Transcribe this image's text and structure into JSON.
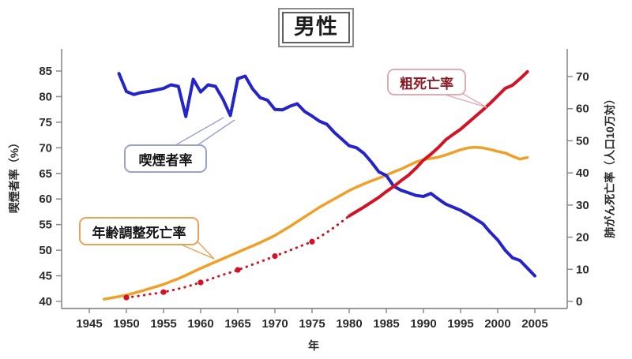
{
  "title": "男性",
  "callouts": {
    "smoking": "喫煙者率",
    "crude": "粗死亡率",
    "age_adjusted": "年齢調整死亡率"
  },
  "colors": {
    "smoking_line": "#2424c8",
    "crude_line": "#d41226",
    "age_adjusted_line": "#f0a028",
    "axis": "#8a8a8a",
    "tick_text": "#2b2b2b"
  },
  "chart_data": {
    "type": "line",
    "title": "男性",
    "xlabel": "年",
    "ylabel_left": "喫煙者率（%）",
    "ylabel_right": "肺がん死亡率（人口10万対）",
    "x_ticks": [
      1945,
      1950,
      1955,
      1960,
      1965,
      1970,
      1975,
      1980,
      1985,
      1990,
      1995,
      2000,
      2005
    ],
    "left_ticks": [
      40,
      45,
      50,
      55,
      60,
      65,
      70,
      75,
      80,
      85
    ],
    "right_ticks": [
      0,
      10,
      20,
      30,
      40,
      50,
      60,
      70
    ],
    "x_range_years": [
      1941.3,
      2009.4
    ],
    "ylim_left": [
      38.6,
      89.3
    ],
    "ylim_right": [
      -2.2,
      78.6
    ],
    "grid": false,
    "legend_position": "callout-bubbles-on-chart",
    "series": [
      {
        "name": "喫煙者率",
        "axis": "left",
        "unit": "%",
        "color": "#2424c8",
        "style": "solid",
        "width": 4,
        "points": [
          [
            1949,
            84.5
          ],
          [
            1950,
            81.0
          ],
          [
            1951,
            80.4
          ],
          [
            1952,
            80.8
          ],
          [
            1953,
            81.0
          ],
          [
            1954,
            81.3
          ],
          [
            1955,
            81.6
          ],
          [
            1956,
            82.3
          ],
          [
            1957,
            82.0
          ],
          [
            1958,
            76.1
          ],
          [
            1959,
            83.4
          ],
          [
            1960,
            80.9
          ],
          [
            1961,
            82.3
          ],
          [
            1962,
            82.0
          ],
          [
            1963,
            79.5
          ],
          [
            1964,
            76.3
          ],
          [
            1965,
            83.5
          ],
          [
            1966,
            84.0
          ],
          [
            1967,
            81.5
          ],
          [
            1968,
            79.8
          ],
          [
            1969,
            79.3
          ],
          [
            1970,
            77.5
          ],
          [
            1971,
            77.4
          ],
          [
            1972,
            78.1
          ],
          [
            1973,
            78.6
          ],
          [
            1974,
            77.1
          ],
          [
            1975,
            76.2
          ],
          [
            1976,
            75.2
          ],
          [
            1977,
            74.6
          ],
          [
            1978,
            73.0
          ],
          [
            1979,
            71.7
          ],
          [
            1980,
            70.4
          ],
          [
            1981,
            70.0
          ],
          [
            1982,
            68.9
          ],
          [
            1983,
            67.2
          ],
          [
            1984,
            65.3
          ],
          [
            1985,
            64.6
          ],
          [
            1986,
            62.5
          ],
          [
            1987,
            61.7
          ],
          [
            1988,
            61.2
          ],
          [
            1989,
            60.7
          ],
          [
            1990,
            60.5
          ],
          [
            1991,
            61.1
          ],
          [
            1992,
            60.0
          ],
          [
            1993,
            59.0
          ],
          [
            1994,
            58.4
          ],
          [
            1995,
            57.8
          ],
          [
            1996,
            57.0
          ],
          [
            1997,
            56.1
          ],
          [
            1998,
            55.2
          ],
          [
            1999,
            53.5
          ],
          [
            2000,
            52.0
          ],
          [
            2001,
            50.0
          ],
          [
            2002,
            48.5
          ],
          [
            2003,
            48.0
          ],
          [
            2004,
            46.5
          ],
          [
            2005,
            45.0
          ]
        ]
      },
      {
        "name": "年齢調整死亡率",
        "axis": "right",
        "unit": "per 100,000",
        "color": "#f0a028",
        "style": "solid",
        "width": 3.5,
        "points": [
          [
            1947,
            0.7
          ],
          [
            1948,
            1.1
          ],
          [
            1949,
            1.5
          ],
          [
            1950,
            2.0
          ],
          [
            1951,
            2.6
          ],
          [
            1952,
            3.2
          ],
          [
            1953,
            3.9
          ],
          [
            1954,
            4.6
          ],
          [
            1955,
            5.3
          ],
          [
            1956,
            6.2
          ],
          [
            1957,
            7.1
          ],
          [
            1958,
            8.1
          ],
          [
            1959,
            9.2
          ],
          [
            1960,
            10.3
          ],
          [
            1961,
            11.3
          ],
          [
            1962,
            12.3
          ],
          [
            1963,
            13.3
          ],
          [
            1964,
            14.3
          ],
          [
            1965,
            15.3
          ],
          [
            1966,
            16.3
          ],
          [
            1967,
            17.3
          ],
          [
            1968,
            18.3
          ],
          [
            1969,
            19.4
          ],
          [
            1970,
            20.5
          ],
          [
            1971,
            21.9
          ],
          [
            1972,
            23.3
          ],
          [
            1973,
            24.8
          ],
          [
            1974,
            26.3
          ],
          [
            1975,
            27.8
          ],
          [
            1976,
            29.3
          ],
          [
            1977,
            30.6
          ],
          [
            1978,
            31.9
          ],
          [
            1979,
            33.2
          ],
          [
            1980,
            34.5
          ],
          [
            1981,
            35.6
          ],
          [
            1982,
            36.6
          ],
          [
            1983,
            37.5
          ],
          [
            1984,
            38.4
          ],
          [
            1985,
            39.3
          ],
          [
            1986,
            40.3
          ],
          [
            1987,
            41.2
          ],
          [
            1988,
            42.3
          ],
          [
            1989,
            43.4
          ],
          [
            1990,
            44.1
          ],
          [
            1991,
            44.5
          ],
          [
            1992,
            44.9
          ],
          [
            1993,
            45.6
          ],
          [
            1994,
            46.4
          ],
          [
            1995,
            47.2
          ],
          [
            1996,
            47.8
          ],
          [
            1997,
            48.0
          ],
          [
            1998,
            47.8
          ],
          [
            1999,
            47.3
          ],
          [
            2000,
            46.7
          ],
          [
            2001,
            46.2
          ],
          [
            2002,
            45.2
          ],
          [
            2003,
            44.3
          ],
          [
            2004,
            44.8
          ]
        ]
      },
      {
        "name": "粗死亡率（点線部）",
        "axis": "right",
        "unit": "per 100,000",
        "color": "#d41226",
        "style": "dotted",
        "width": 3,
        "marker_years": [
          1950,
          1955,
          1960,
          1965,
          1970,
          1975
        ],
        "points": [
          [
            1950,
            1.2
          ],
          [
            1951,
            1.5
          ],
          [
            1952,
            1.8
          ],
          [
            1953,
            2.2
          ],
          [
            1954,
            2.5
          ],
          [
            1955,
            2.9
          ],
          [
            1956,
            3.4
          ],
          [
            1957,
            3.9
          ],
          [
            1958,
            4.5
          ],
          [
            1959,
            5.2
          ],
          [
            1960,
            5.9
          ],
          [
            1961,
            6.7
          ],
          [
            1962,
            7.5
          ],
          [
            1963,
            8.3
          ],
          [
            1964,
            9.0
          ],
          [
            1965,
            9.8
          ],
          [
            1966,
            10.6
          ],
          [
            1967,
            11.5
          ],
          [
            1968,
            12.3
          ],
          [
            1969,
            13.2
          ],
          [
            1970,
            14.1
          ],
          [
            1971,
            15.0
          ],
          [
            1972,
            15.9
          ],
          [
            1973,
            16.8
          ],
          [
            1974,
            17.7
          ],
          [
            1975,
            18.6
          ],
          [
            1976,
            20.0
          ],
          [
            1977,
            21.5
          ],
          [
            1978,
            23.1
          ],
          [
            1979,
            24.8
          ],
          [
            1980,
            26.6
          ]
        ]
      },
      {
        "name": "粗死亡率",
        "axis": "right",
        "unit": "per 100,000",
        "color": "#d41226",
        "style": "solid",
        "width": 4,
        "points": [
          [
            1980,
            26.6
          ],
          [
            1981,
            28.0
          ],
          [
            1982,
            29.4
          ],
          [
            1983,
            30.9
          ],
          [
            1984,
            32.4
          ],
          [
            1985,
            34.2
          ],
          [
            1986,
            35.8
          ],
          [
            1987,
            37.6
          ],
          [
            1988,
            39.3
          ],
          [
            1989,
            41.5
          ],
          [
            1990,
            44.0
          ],
          [
            1991,
            45.8
          ],
          [
            1992,
            47.9
          ],
          [
            1993,
            50.3
          ],
          [
            1994,
            52.0
          ],
          [
            1995,
            53.6
          ],
          [
            1996,
            55.6
          ],
          [
            1997,
            57.6
          ],
          [
            1998,
            59.6
          ],
          [
            1999,
            61.7
          ],
          [
            2000,
            64.0
          ],
          [
            2001,
            66.3
          ],
          [
            2002,
            67.3
          ],
          [
            2003,
            69.3
          ],
          [
            2004,
            71.5
          ]
        ]
      }
    ]
  }
}
